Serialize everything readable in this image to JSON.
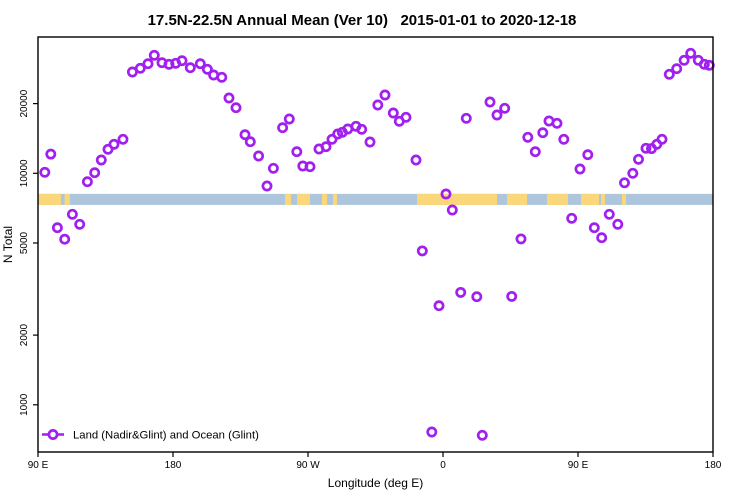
{
  "title": "17.5N-22.5N Annual Mean (Ver 10)   2015-01-01 to 2020-12-18",
  "chart_data": {
    "type": "scatter",
    "title": "17.5N-22.5N Annual Mean (Ver 10)   2015-01-01 to 2020-12-18",
    "xlabel": "Longitude (deg E)",
    "ylabel": "N Total",
    "y_scale": "log",
    "x_axis_note": "longitude runs eastward from 90E, wrapping 90E > 180 > 90W > 0 > 90E > 180; stored x = degrees east of 0 accumulated (90..540)",
    "x_range": [
      90,
      540
    ],
    "x_ticks": [
      {
        "lon": 90,
        "label": "90 E"
      },
      {
        "lon": 180,
        "label": "180"
      },
      {
        "lon": 270,
        "label": "90 W"
      },
      {
        "lon": 360,
        "label": "0"
      },
      {
        "lon": 450,
        "label": "90 E"
      },
      {
        "lon": 540,
        "label": "180"
      }
    ],
    "y_ticks": [
      {
        "value": 20000,
        "label": "20000"
      },
      {
        "value": 10000,
        "label": "10000"
      },
      {
        "value": 5000,
        "label": "5000"
      },
      {
        "value": 2000,
        "label": "2000"
      },
      {
        "value": 1000,
        "label": "1000"
      }
    ],
    "y_range_approx": [
      630,
      38000
    ],
    "legend": {
      "label": "Land (Nadir&Glint) and Ocean (Glint)",
      "position": "bottom-left",
      "marker": "line-through-open-circle"
    },
    "marker": {
      "shape": "open-circle",
      "color": "#A120F0"
    },
    "map_band": {
      "description": "world-map latitude strip: ocean vs land along longitude",
      "ocean_color": "#AEC6DC",
      "land_color": "#FBD77C",
      "n_top": 8150,
      "n_bottom": 7300,
      "ocean_range": [
        90,
        540
      ],
      "land_segments": [
        [
          90,
          105.3
        ],
        [
          107.7,
          111.3
        ],
        [
          254.7,
          258.7
        ],
        [
          262.7,
          271.3
        ],
        [
          279.3,
          282.7
        ],
        [
          286.7,
          289.3
        ],
        [
          342.7,
          396
        ],
        [
          402.7,
          416
        ],
        [
          429.3,
          443.3
        ],
        [
          452,
          464
        ],
        [
          465.3,
          468
        ],
        [
          479.3,
          482
        ]
      ]
    },
    "points": [
      [
        94.5,
        10100
      ],
      [
        98.5,
        12100
      ],
      [
        102.9,
        5820
      ],
      [
        107.8,
        5190
      ],
      [
        112.9,
        6650
      ],
      [
        117.8,
        6020
      ],
      [
        122.9,
        9200
      ],
      [
        127.8,
        10060
      ],
      [
        132.2,
        11410
      ],
      [
        136.7,
        12700
      ],
      [
        140.7,
        13340
      ],
      [
        146.7,
        14020
      ],
      [
        152.9,
        27390
      ],
      [
        158.2,
        28420
      ],
      [
        163.3,
        29760
      ],
      [
        167.5,
        32340
      ],
      [
        172.7,
        30050
      ],
      [
        177.3,
        29570
      ],
      [
        181.8,
        29870
      ],
      [
        186,
        30650
      ],
      [
        191.5,
        28590
      ],
      [
        198.2,
        29760
      ],
      [
        202.9,
        28130
      ],
      [
        207.1,
        26580
      ],
      [
        212.5,
        25990
      ],
      [
        217.3,
        21150
      ],
      [
        222,
        19200
      ],
      [
        228,
        14680
      ],
      [
        231.5,
        13690
      ],
      [
        237.1,
        11880
      ],
      [
        242.7,
        8810
      ],
      [
        246.9,
        10510
      ],
      [
        253.1,
        15740
      ],
      [
        257.5,
        17160
      ],
      [
        262.5,
        12400
      ],
      [
        266.5,
        10750
      ],
      [
        271.3,
        10680
      ],
      [
        277.3,
        12730
      ],
      [
        282,
        13030
      ],
      [
        286,
        14020
      ],
      [
        289.8,
        14780
      ],
      [
        292.9,
        15030
      ],
      [
        296.5,
        15540
      ],
      [
        302,
        15960
      ],
      [
        305.8,
        15490
      ],
      [
        311.3,
        13650
      ],
      [
        316.5,
        19720
      ],
      [
        321.3,
        21790
      ],
      [
        326.9,
        18220
      ],
      [
        330.9,
        16770
      ],
      [
        335.3,
        17460
      ],
      [
        342,
        11410
      ],
      [
        346.2,
        4620
      ],
      [
        352.5,
        763
      ],
      [
        357.3,
        2680
      ],
      [
        362,
        8140
      ],
      [
        366.2,
        6940
      ],
      [
        371.8,
        3060
      ],
      [
        375.5,
        17290
      ],
      [
        382.5,
        2930
      ],
      [
        386.2,
        738
      ],
      [
        391.3,
        20320
      ],
      [
        396,
        17860
      ],
      [
        401.1,
        19090
      ],
      [
        405.8,
        2940
      ],
      [
        412,
        5210
      ],
      [
        416.5,
        14310
      ],
      [
        421.5,
        12400
      ],
      [
        426.5,
        14980
      ],
      [
        430.7,
        16820
      ],
      [
        436,
        16440
      ],
      [
        440.5,
        14020
      ],
      [
        445.8,
        6390
      ],
      [
        451.3,
        10440
      ],
      [
        456.5,
        12030
      ],
      [
        460.9,
        5820
      ],
      [
        465.8,
        5270
      ],
      [
        470.9,
        6650
      ],
      [
        476.5,
        6020
      ],
      [
        481,
        9100
      ],
      [
        486.5,
        10000
      ],
      [
        490.3,
        11490
      ],
      [
        495.3,
        12820
      ],
      [
        499,
        12790
      ],
      [
        502.5,
        13340
      ],
      [
        506,
        14020
      ],
      [
        510.9,
        26770
      ],
      [
        515.8,
        28310
      ],
      [
        520.7,
        30770
      ],
      [
        525.1,
        33000
      ],
      [
        530.2,
        30770
      ],
      [
        534.2,
        29570
      ],
      [
        537.5,
        29280
      ]
    ]
  }
}
